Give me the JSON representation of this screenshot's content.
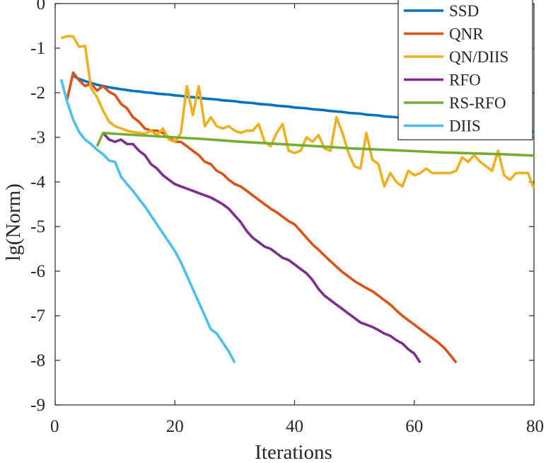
{
  "chart_data": {
    "type": "line",
    "title": "",
    "xlabel": "Iterations",
    "ylabel": "lg(Norm)",
    "xlim": [
      0,
      80
    ],
    "ylim": [
      -9,
      0
    ],
    "xticks": [
      0,
      20,
      40,
      60,
      80
    ],
    "yticks": [
      0,
      -1,
      -2,
      -3,
      -4,
      -5,
      -6,
      -7,
      -8,
      -9
    ],
    "grid": false,
    "legend_position": "top-right",
    "series": [
      {
        "name": "SSD",
        "color": "#0072BD",
        "x": [
          3,
          4,
          5,
          6,
          7,
          8,
          9,
          10,
          11,
          12,
          13,
          14,
          15,
          16,
          17,
          18,
          19,
          20,
          21,
          22,
          23,
          24,
          25,
          26,
          27,
          28,
          29,
          30,
          31,
          32,
          33,
          34,
          35,
          36,
          37,
          38,
          39,
          40,
          41,
          42,
          43,
          44,
          45,
          46,
          47,
          48,
          49,
          50,
          51,
          52,
          53,
          54,
          55,
          56,
          57,
          58,
          59,
          60,
          61,
          62,
          63,
          64,
          65,
          66,
          67,
          68,
          69,
          70,
          71,
          72,
          73,
          74,
          75,
          76,
          77,
          78,
          79,
          80
        ],
        "y": [
          -1.62,
          -1.69,
          -1.74,
          -1.78,
          -1.82,
          -1.85,
          -1.88,
          -1.9,
          -1.92,
          -1.94,
          -1.96,
          -1.97,
          -1.99,
          -2.0,
          -2.02,
          -2.03,
          -2.04,
          -2.06,
          -2.07,
          -2.09,
          -2.1,
          -2.11,
          -2.13,
          -2.14,
          -2.15,
          -2.17,
          -2.18,
          -2.19,
          -2.21,
          -2.22,
          -2.23,
          -2.25,
          -2.26,
          -2.27,
          -2.29,
          -2.3,
          -2.31,
          -2.33,
          -2.34,
          -2.35,
          -2.37,
          -2.38,
          -2.39,
          -2.41,
          -2.42,
          -2.43,
          -2.45,
          -2.46,
          -2.47,
          -2.49,
          -2.5,
          -2.51,
          -2.53,
          -2.54,
          -2.55,
          -2.57,
          -2.58,
          -2.6,
          -2.61,
          -2.62,
          -2.64,
          -2.65,
          -2.66,
          -2.68,
          -2.69,
          -2.7,
          -2.72,
          -2.73,
          -2.74,
          -2.76,
          -2.77,
          -2.78,
          -2.8,
          -2.81,
          -2.82,
          -2.84,
          -2.85,
          -2.87
        ]
      },
      {
        "name": "QNR",
        "color": "#D95319",
        "x": [
          2,
          3,
          4,
          5,
          6,
          7,
          8,
          9,
          10,
          11,
          12,
          13,
          14,
          15,
          16,
          17,
          18,
          19,
          20,
          21,
          22,
          23,
          24,
          25,
          26,
          27,
          28,
          29,
          30,
          31,
          32,
          33,
          34,
          35,
          36,
          37,
          38,
          39,
          40,
          41,
          42,
          43,
          44,
          45,
          46,
          47,
          48,
          49,
          50,
          51,
          52,
          53,
          54,
          55,
          56,
          57,
          58,
          59,
          60,
          61,
          62,
          63,
          64,
          65,
          66,
          67
        ],
        "y": [
          -2.15,
          -1.55,
          -1.72,
          -1.85,
          -1.8,
          -1.95,
          -1.85,
          -1.98,
          -2.05,
          -2.25,
          -2.35,
          -2.55,
          -2.65,
          -2.8,
          -2.85,
          -2.85,
          -2.9,
          -3.0,
          -3.1,
          -3.1,
          -3.2,
          -3.3,
          -3.4,
          -3.55,
          -3.6,
          -3.75,
          -3.82,
          -3.95,
          -4.05,
          -4.1,
          -4.2,
          -4.3,
          -4.4,
          -4.5,
          -4.6,
          -4.68,
          -4.78,
          -4.88,
          -4.95,
          -5.1,
          -5.25,
          -5.4,
          -5.52,
          -5.65,
          -5.78,
          -5.9,
          -6.02,
          -6.12,
          -6.22,
          -6.3,
          -6.38,
          -6.45,
          -6.55,
          -6.65,
          -6.75,
          -6.88,
          -7.0,
          -7.1,
          -7.2,
          -7.3,
          -7.4,
          -7.5,
          -7.6,
          -7.72,
          -7.88,
          -8.05
        ]
      },
      {
        "name": "QN/DIIS",
        "color": "#EDB120",
        "x": [
          1,
          2,
          3,
          4,
          5,
          6,
          7,
          8,
          9,
          10,
          11,
          12,
          13,
          14,
          15,
          16,
          17,
          18,
          19,
          20,
          21,
          22,
          23,
          24,
          25,
          26,
          27,
          28,
          29,
          30,
          31,
          32,
          33,
          34,
          35,
          36,
          37,
          38,
          39,
          40,
          41,
          42,
          43,
          44,
          45,
          46,
          47,
          48,
          49,
          50,
          51,
          52,
          53,
          54,
          55,
          56,
          57,
          58,
          59,
          60,
          61,
          62,
          63,
          64,
          65,
          66,
          67,
          68,
          69,
          70,
          71,
          72,
          73,
          74,
          75,
          76,
          77,
          78,
          79,
          80
        ],
        "y": [
          -0.78,
          -0.73,
          -0.74,
          -0.97,
          -0.95,
          -1.9,
          -2.1,
          -2.4,
          -2.65,
          -2.75,
          -2.8,
          -2.85,
          -2.88,
          -2.9,
          -2.92,
          -2.85,
          -2.95,
          -2.8,
          -3.05,
          -3.1,
          -2.9,
          -1.85,
          -2.5,
          -1.85,
          -2.75,
          -2.55,
          -2.75,
          -2.8,
          -2.75,
          -2.85,
          -2.9,
          -2.85,
          -2.85,
          -2.7,
          -3.1,
          -3.2,
          -2.9,
          -2.7,
          -3.3,
          -3.35,
          -3.3,
          -3.0,
          -3.1,
          -2.95,
          -3.25,
          -3.3,
          -2.55,
          -2.9,
          -3.35,
          -3.65,
          -3.7,
          -2.9,
          -3.5,
          -3.6,
          -4.1,
          -3.8,
          -4.0,
          -4.1,
          -3.75,
          -3.85,
          -3.8,
          -3.7,
          -3.8,
          -3.8,
          -3.8,
          -3.8,
          -3.75,
          -3.45,
          -3.55,
          -3.4,
          -3.55,
          -3.65,
          -3.75,
          -3.3,
          -3.85,
          -3.95,
          -3.8,
          -3.8,
          -3.8,
          -4.15
        ]
      },
      {
        "name": "RFO",
        "color": "#7E2F8E",
        "x": [
          8,
          9,
          10,
          11,
          12,
          13,
          14,
          15,
          16,
          17,
          18,
          19,
          20,
          21,
          22,
          23,
          24,
          25,
          26,
          27,
          28,
          29,
          30,
          31,
          32,
          33,
          34,
          35,
          36,
          37,
          38,
          39,
          40,
          41,
          42,
          43,
          44,
          45,
          46,
          47,
          48,
          49,
          50,
          51,
          52,
          53,
          54,
          55,
          56,
          57,
          58,
          59,
          60,
          61
        ],
        "y": [
          -2.9,
          -3.05,
          -3.1,
          -3.05,
          -3.15,
          -3.15,
          -3.3,
          -3.4,
          -3.6,
          -3.7,
          -3.85,
          -3.95,
          -4.05,
          -4.1,
          -4.15,
          -4.2,
          -4.25,
          -4.3,
          -4.35,
          -4.42,
          -4.5,
          -4.6,
          -4.75,
          -4.9,
          -5.1,
          -5.25,
          -5.35,
          -5.45,
          -5.5,
          -5.6,
          -5.7,
          -5.75,
          -5.85,
          -5.95,
          -6.05,
          -6.2,
          -6.4,
          -6.55,
          -6.65,
          -6.75,
          -6.85,
          -6.95,
          -7.05,
          -7.15,
          -7.2,
          -7.25,
          -7.32,
          -7.4,
          -7.45,
          -7.55,
          -7.62,
          -7.75,
          -7.85,
          -8.05
        ]
      },
      {
        "name": "RS-RFO",
        "color": "#77AC30",
        "x": [
          7,
          8,
          10,
          15,
          20,
          25,
          30,
          35,
          40,
          45,
          50,
          55,
          60,
          65,
          70,
          75,
          80
        ],
        "y": [
          -3.2,
          -2.9,
          -2.92,
          -2.96,
          -3.0,
          -3.04,
          -3.09,
          -3.13,
          -3.17,
          -3.21,
          -3.25,
          -3.28,
          -3.31,
          -3.34,
          -3.36,
          -3.38,
          -3.41
        ]
      },
      {
        "name": "DIIS",
        "color": "#4DBEEE",
        "x": [
          1,
          2,
          3,
          4,
          5,
          6,
          7,
          8,
          9,
          10,
          11,
          12,
          13,
          14,
          15,
          16,
          17,
          18,
          19,
          20,
          21,
          22,
          23,
          24,
          25,
          26,
          27,
          28,
          29,
          30
        ],
        "y": [
          -1.7,
          -2.2,
          -2.6,
          -2.88,
          -3.05,
          -3.15,
          -3.28,
          -3.38,
          -3.52,
          -3.55,
          -3.88,
          -4.05,
          -4.2,
          -4.38,
          -4.55,
          -4.75,
          -4.95,
          -5.15,
          -5.35,
          -5.55,
          -5.8,
          -6.1,
          -6.4,
          -6.7,
          -7.0,
          -7.3,
          -7.4,
          -7.6,
          -7.8,
          -8.05
        ]
      }
    ]
  }
}
